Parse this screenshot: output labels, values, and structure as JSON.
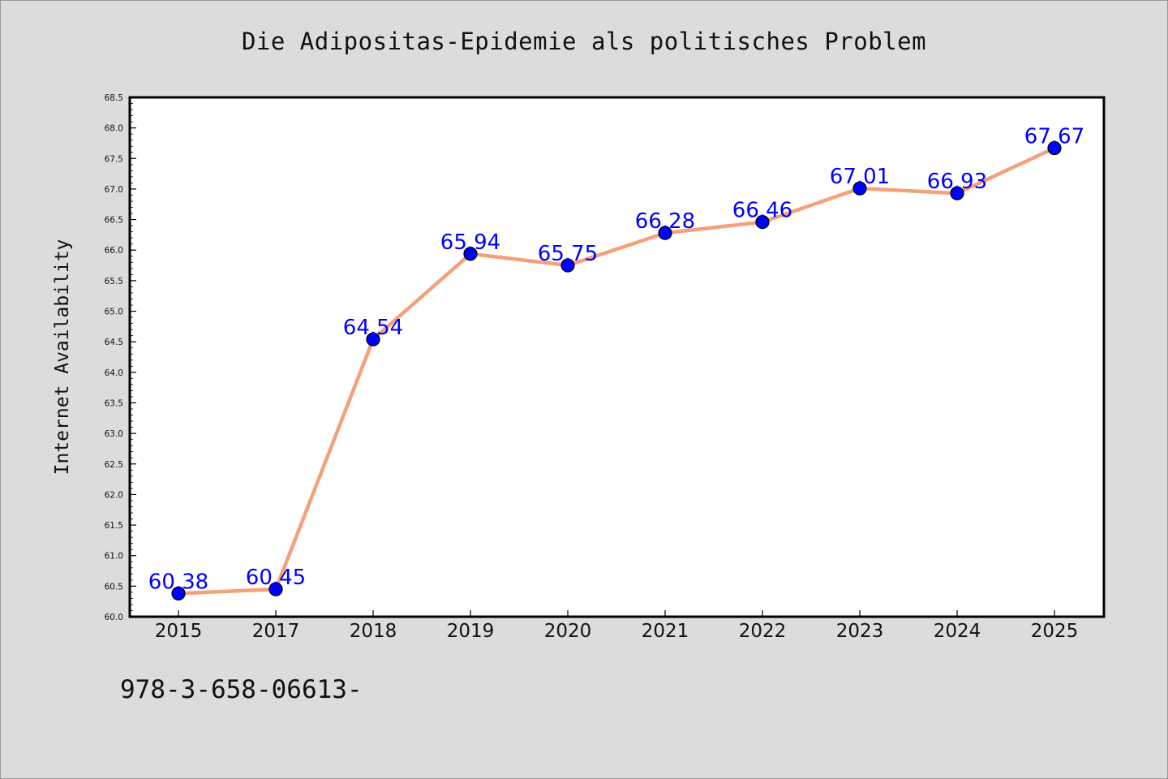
{
  "chart_data": {
    "type": "line",
    "title": "Die Adipositas-Epidemie als politisches Problem",
    "xlabel": "",
    "ylabel": "Internet Availability",
    "categories": [
      "2015",
      "2017",
      "2018",
      "2019",
      "2020",
      "2021",
      "2022",
      "2023",
      "2024",
      "2025"
    ],
    "series": [
      {
        "values": [
          60.38,
          60.45,
          64.54,
          65.94,
          65.75,
          66.28,
          66.46,
          67.01,
          66.93,
          67.67
        ],
        "labels": [
          "60.38",
          "60.45",
          "64.54",
          "65.94",
          "65.75",
          "66.28",
          "66.46",
          "67.01",
          "66.93",
          "67.67"
        ],
        "line_color": "#f4a07a",
        "marker_color": "#0000ff"
      }
    ],
    "ylim": [
      60.0,
      68.5
    ],
    "yticks": [
      "60.0",
      "60.5",
      "61.0",
      "61.5",
      "62.0",
      "62.5",
      "63.0",
      "63.5",
      "64.0",
      "64.5",
      "65.0",
      "65.5",
      "66.0",
      "66.5",
      "67.0",
      "67.5",
      "68.0",
      "68.5"
    ],
    "grid": false,
    "legend": "none"
  },
  "footer_text": "978-3-658-06613-",
  "colors": {
    "background": "#dcdcdc",
    "plot_background": "#ffffff",
    "data_label": "#0000ff"
  }
}
